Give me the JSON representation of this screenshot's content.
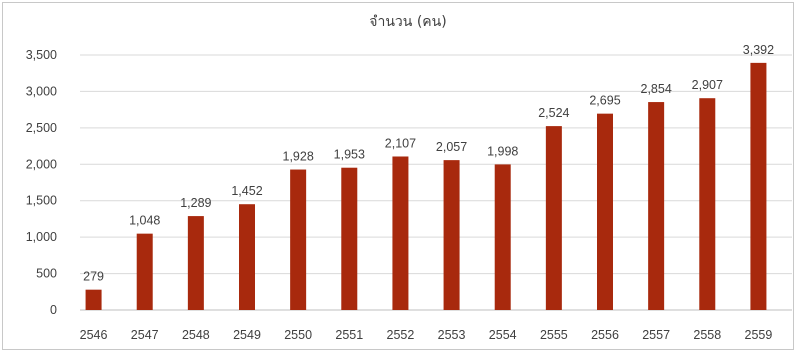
{
  "chart_data": {
    "type": "bar",
    "title": "จำนวน (คน)",
    "xlabel": "",
    "ylabel": "",
    "categories": [
      "2546",
      "2547",
      "2548",
      "2549",
      "2550",
      "2551",
      "2552",
      "2553",
      "2554",
      "2555",
      "2556",
      "2557",
      "2558",
      "2559"
    ],
    "values": [
      279,
      1048,
      1289,
      1452,
      1928,
      1953,
      2107,
      2057,
      1998,
      2524,
      2695,
      2854,
      2907,
      3392
    ],
    "value_labels": [
      "279",
      "1,048",
      "1,289",
      "1,452",
      "1,928",
      "1,953",
      "2,107",
      "2,057",
      "1,998",
      "2,524",
      "2,695",
      "2,854",
      "2,907",
      "3,392"
    ],
    "ylim": [
      0,
      3500
    ],
    "yticks": [
      0,
      500,
      1000,
      1500,
      2000,
      2500,
      3000,
      3500
    ],
    "ytick_labels": [
      "0",
      "500",
      "1,000",
      "1,500",
      "2,000",
      "2,500",
      "3,000",
      "3,500"
    ],
    "grid": true,
    "legend": "none",
    "bar_color": "#a8290d"
  }
}
